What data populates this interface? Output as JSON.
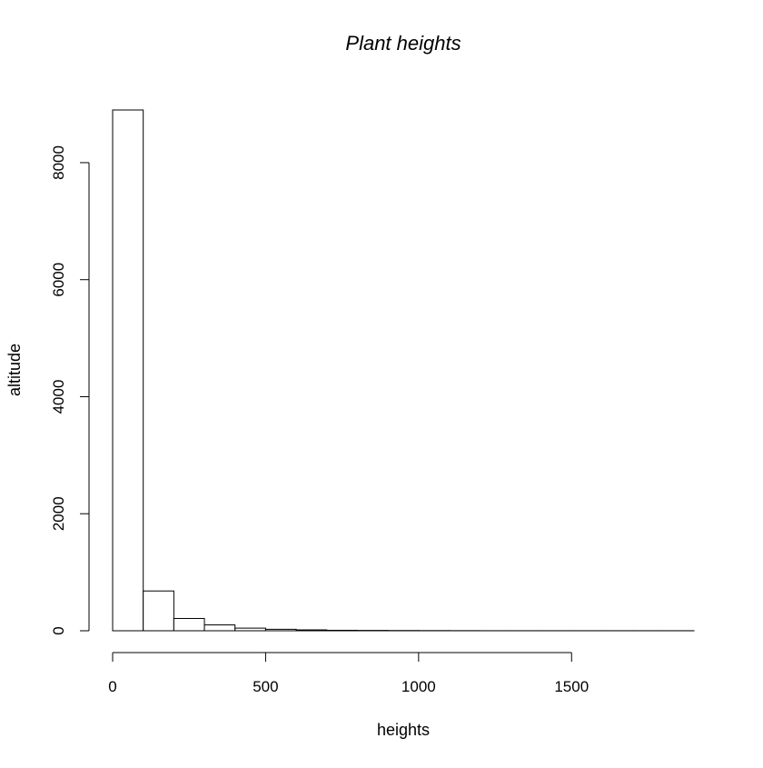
{
  "chart_data": {
    "type": "bar",
    "title": "Plant heights",
    "xlabel": "heights",
    "ylabel": "altitude",
    "bin_edges": [
      0,
      100,
      200,
      300,
      400,
      500,
      600,
      700,
      800,
      900,
      1000,
      1100,
      1200,
      1300,
      1400,
      1500,
      1600,
      1700,
      1800,
      1900
    ],
    "values": [
      8900,
      680,
      210,
      100,
      45,
      25,
      15,
      8,
      6,
      4,
      3,
      2,
      1,
      1,
      1,
      1,
      1,
      1,
      1
    ],
    "xlim": [
      0,
      1900
    ],
    "ylim": [
      0,
      8900
    ],
    "x_ticks": [
      {
        "value": 0,
        "label": "0"
      },
      {
        "value": 500,
        "label": "500"
      },
      {
        "value": 1000,
        "label": "1000"
      },
      {
        "value": 1500,
        "label": "1500"
      }
    ],
    "y_ticks": [
      {
        "value": 0,
        "label": "0"
      },
      {
        "value": 2000,
        "label": "2000"
      },
      {
        "value": 4000,
        "label": "4000"
      },
      {
        "value": 6000,
        "label": "6000"
      },
      {
        "value": 8000,
        "label": "8000"
      }
    ],
    "grid": false,
    "bar_fill": "#ffffff",
    "bar_stroke": "#000000"
  }
}
